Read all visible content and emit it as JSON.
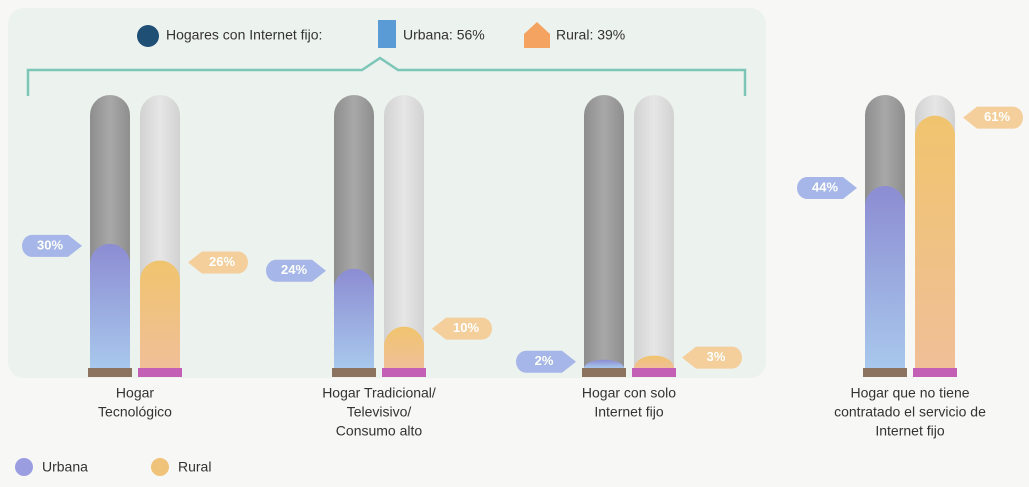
{
  "header": {
    "title": "Hogares con Internet fijo:",
    "urban": "Urbana: 56%",
    "rural": "Rural: 39%"
  },
  "chart_data": {
    "type": "bar",
    "categories": [
      [
        "Hogar",
        "Tecnológico"
      ],
      [
        "Hogar Tradicional/",
        "Televisivo/",
        "Consumo alto"
      ],
      [
        "Hogar con solo",
        "Internet fijo"
      ],
      [
        "Hogar que no tiene",
        "contratado el servicio de",
        "Internet fijo"
      ]
    ],
    "series": [
      {
        "name": "Urbana",
        "color": "#9a9ee0",
        "values": [
          30,
          24,
          2,
          44
        ],
        "value_labels": [
          "30%",
          "24%",
          "2%",
          "44%"
        ]
      },
      {
        "name": "Rural",
        "color": "#f0c37a",
        "values": [
          26,
          10,
          3,
          61
        ],
        "value_labels": [
          "26%",
          "10%",
          "3%",
          "61%"
        ]
      }
    ],
    "ylim": [
      0,
      66
    ]
  }
}
